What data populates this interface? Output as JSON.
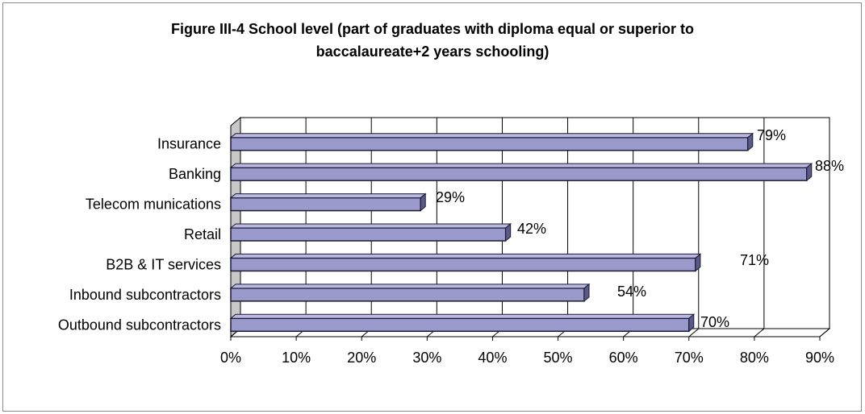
{
  "chart_data": {
    "type": "bar",
    "orientation": "horizontal",
    "title_lines": [
      "Figure III-4 School level (part of graduates with diploma equal or superior to",
      "baccalaureate+2 years schooling)"
    ],
    "categories": [
      "Insurance",
      "Banking",
      "Telecom munications",
      "Retail",
      "B2B & IT services",
      "Inbound subcontractors",
      "Outbound subcontractors"
    ],
    "values": [
      79,
      88,
      29,
      42,
      71,
      54,
      70
    ],
    "data_labels": [
      "79%",
      "88%",
      "29%",
      "42%",
      "71%",
      "54%",
      "70%"
    ],
    "xlim": [
      0,
      90
    ],
    "xticks": [
      0,
      10,
      20,
      30,
      40,
      50,
      60,
      70,
      80,
      90
    ],
    "xtick_labels": [
      "0%",
      "10%",
      "20%",
      "30%",
      "40%",
      "50%",
      "60%",
      "70%",
      "80%",
      "90%"
    ],
    "grid": "vertical",
    "legend": "none",
    "style": "3d",
    "colors": {
      "bar_front": "#9999cc",
      "bar_top": "#b8b8e0",
      "bar_side": "#5a5a8a",
      "bar_edge": "#1a1a33",
      "wall": "#c8c8c8",
      "grid": "#000000"
    }
  }
}
